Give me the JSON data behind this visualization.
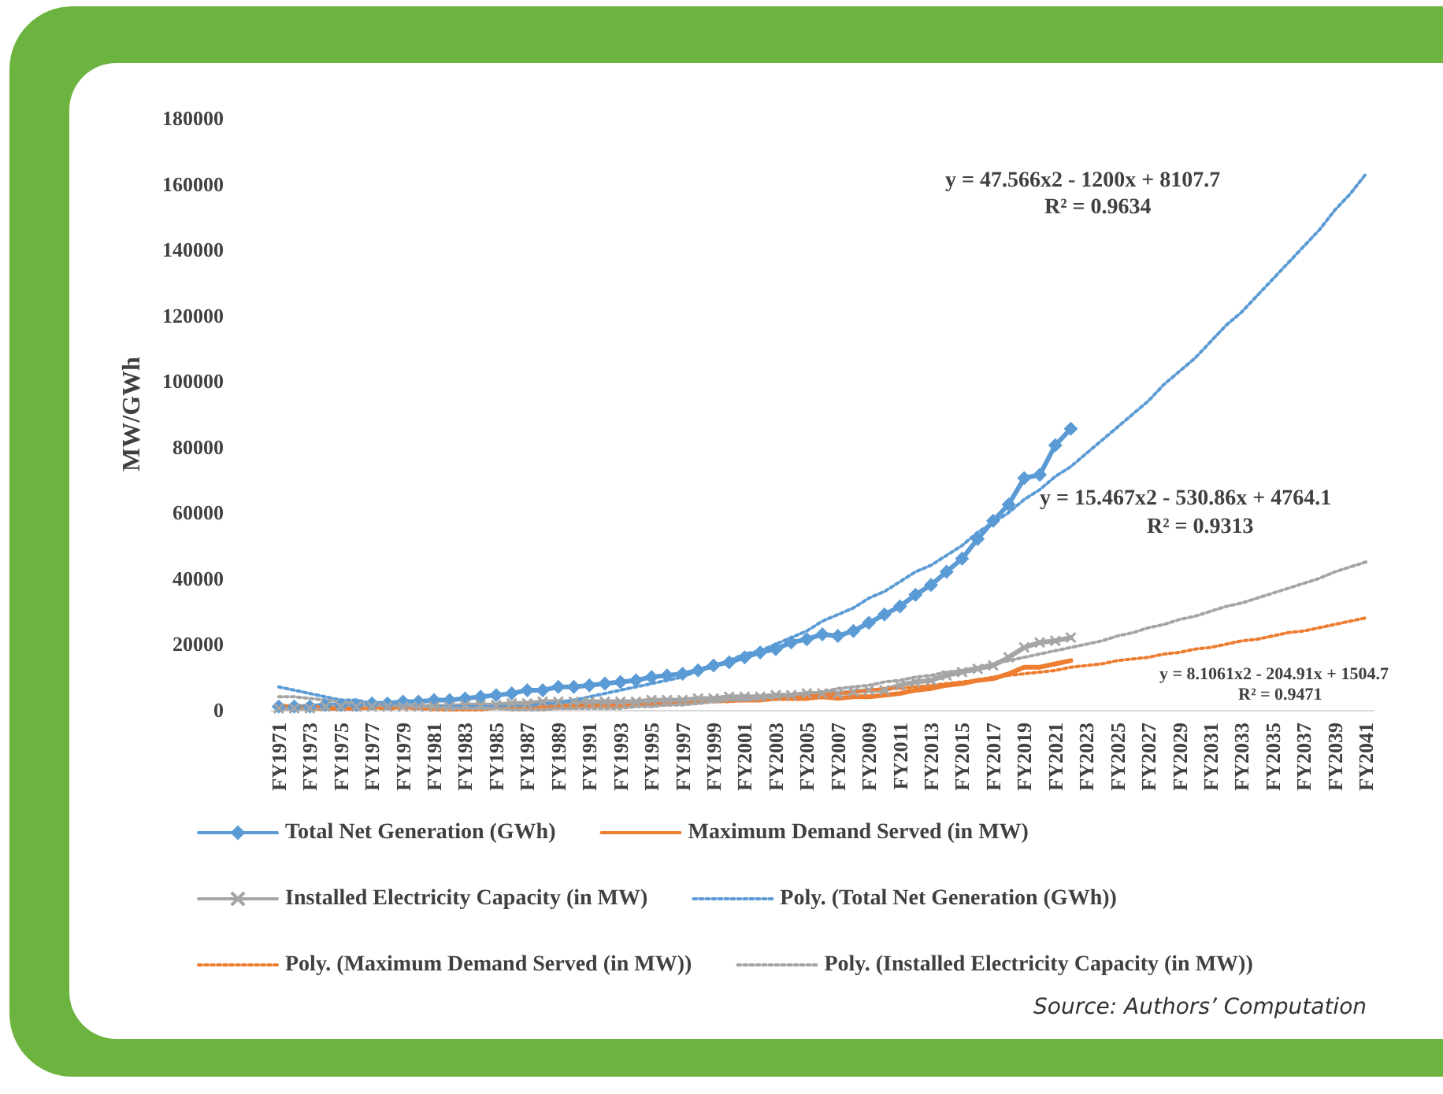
{
  "chart_data": {
    "type": "line",
    "ylabel": "MW/GWh",
    "categories": [
      "FY1971",
      null,
      "FY1973",
      null,
      "FY1975",
      null,
      "FY1977",
      null,
      "FY1979",
      null,
      "FY1981",
      null,
      "FY1983",
      null,
      "FY1985",
      null,
      "FY1987",
      null,
      "FY1989",
      null,
      "FY1991",
      null,
      "FY1993",
      null,
      "FY1995",
      null,
      "FY1997",
      null,
      "FY1999",
      null,
      "FY2001",
      null,
      "FY2003",
      null,
      "FY2005",
      null,
      "FY2007",
      null,
      "FY2009",
      null,
      "FY2011",
      null,
      "FY2013",
      null,
      "FY2015",
      null,
      "FY2017",
      null,
      "FY2019",
      null,
      "FY2021",
      null,
      "FY2023",
      null,
      "FY2025",
      null,
      "FY2027",
      null,
      "FY2029",
      null,
      "FY2031",
      null,
      "FY2033",
      null,
      "FY2035",
      null,
      "FY2037",
      null,
      "FY2039",
      null,
      "FY2041"
    ],
    "ylim": [
      0,
      180000
    ],
    "yticks": [
      0,
      20000,
      40000,
      60000,
      80000,
      100000,
      120000,
      140000,
      160000,
      180000
    ],
    "grid": false,
    "legend": "bottom",
    "series": [
      {
        "name": "Total Net Generation (GWh)",
        "color": "#5b9bd5",
        "marker": "diamond",
        "line_style": "solid",
        "values": [
          1000,
          1000,
          1000,
          1500,
          1500,
          1500,
          2000,
          2000,
          2500,
          2500,
          3000,
          3000,
          3500,
          4000,
          4500,
          5000,
          6000,
          6000,
          7000,
          7000,
          7500,
          8000,
          8500,
          9000,
          10000,
          10500,
          11000,
          12000,
          13500,
          14500,
          16000,
          17500,
          18500,
          20500,
          21500,
          23000,
          22500,
          24000,
          26500,
          29000,
          31500,
          35000,
          38000,
          42000,
          46000,
          52000,
          57500,
          62500,
          70500,
          71500,
          80500,
          85500,
          null,
          null,
          null,
          null,
          null,
          null,
          null,
          null,
          null,
          null,
          null,
          null,
          null,
          null,
          null,
          null,
          null,
          null,
          null
        ]
      },
      {
        "name": "Maximum Demand Served (in MW)",
        "color": "#ed7d31",
        "marker": "none",
        "line_style": "solid",
        "values": [
          500,
          500,
          500,
          500,
          500,
          500,
          1000,
          1000,
          1000,
          1000,
          1000,
          1000,
          1000,
          1000,
          1500,
          1500,
          1500,
          1500,
          1500,
          1500,
          2000,
          2000,
          2000,
          2000,
          2000,
          2500,
          2500,
          2500,
          3000,
          3000,
          3000,
          3000,
          3500,
          3500,
          3500,
          4000,
          3500,
          4000,
          4000,
          4500,
          5000,
          6000,
          6500,
          7500,
          8000,
          9000,
          9500,
          11000,
          13000,
          13000,
          14000,
          15000,
          null,
          null,
          null,
          null,
          null,
          null,
          null,
          null,
          null,
          null,
          null,
          null,
          null,
          null,
          null,
          null,
          null,
          null,
          null
        ]
      },
      {
        "name": "Installed Electricity Capacity (in MW)",
        "color": "#a5a5a5",
        "marker": "cross",
        "line_style": "solid",
        "values": [
          500,
          500,
          500,
          1000,
          1000,
          1000,
          1000,
          1000,
          1000,
          1000,
          1000,
          1000,
          1500,
          1500,
          1500,
          2000,
          2000,
          2500,
          2500,
          2500,
          2500,
          2500,
          2500,
          2500,
          3000,
          3000,
          3000,
          3500,
          3500,
          4000,
          4000,
          4000,
          4500,
          4500,
          5000,
          5000,
          5000,
          5500,
          6000,
          6000,
          7500,
          8500,
          9000,
          10500,
          11500,
          12500,
          13500,
          16000,
          19000,
          20500,
          21000,
          22000,
          null,
          null,
          null,
          null,
          null,
          null,
          null,
          null,
          null,
          null,
          null,
          null,
          null,
          null,
          null,
          null,
          null,
          null,
          null
        ]
      },
      {
        "name": "Poly. (Total Net Generation (GWh))",
        "color": "#5b9bd5",
        "marker": "none",
        "line_style": "dotted",
        "values": [
          7000,
          6000,
          5000,
          4000,
          3000,
          3000,
          2000,
          2000,
          1000,
          1000,
          1000,
          1000,
          1000,
          1000,
          1000,
          1000,
          1000,
          2000,
          2000,
          3000,
          4000,
          5000,
          6000,
          7000,
          8000,
          9000,
          10000,
          12000,
          13000,
          15000,
          17000,
          18000,
          20000,
          22000,
          24000,
          27000,
          29000,
          31000,
          34000,
          36000,
          39000,
          42000,
          44000,
          47000,
          50000,
          54000,
          57000,
          60000,
          64000,
          67000,
          71000,
          74000,
          78000,
          82000,
          86000,
          90000,
          94000,
          99000,
          103000,
          107000,
          112000,
          117000,
          121000,
          126000,
          131000,
          136000,
          141000,
          146000,
          152000,
          157000,
          163000
        ]
      },
      {
        "name": "Poly. (Maximum Demand Served (in MW))",
        "color": "#ed7d31",
        "marker": "none",
        "line_style": "dotted",
        "values": [
          1500,
          1000,
          1000,
          1000,
          500,
          500,
          500,
          500,
          500,
          500,
          0,
          0,
          0,
          0,
          500,
          500,
          500,
          500,
          500,
          500,
          1000,
          1000,
          1000,
          1500,
          1500,
          1500,
          2000,
          2000,
          2500,
          2500,
          3000,
          3000,
          3500,
          4000,
          4500,
          4500,
          5000,
          5500,
          6000,
          6500,
          6500,
          7000,
          7500,
          8000,
          8500,
          9000,
          10000,
          10500,
          11000,
          11500,
          12000,
          13000,
          13500,
          14000,
          15000,
          15500,
          16000,
          17000,
          17500,
          18500,
          19000,
          20000,
          21000,
          21500,
          22500,
          23500,
          24000,
          25000,
          26000,
          27000,
          28000
        ]
      },
      {
        "name": "Poly. (Installed Electricity Capacity (in MW))",
        "color": "#a5a5a5",
        "marker": "none",
        "line_style": "dotted",
        "values": [
          4000,
          4000,
          3500,
          3000,
          2500,
          2000,
          2000,
          1500,
          1000,
          1000,
          1000,
          500,
          500,
          500,
          500,
          0,
          0,
          0,
          500,
          500,
          500,
          500,
          500,
          1000,
          1000,
          1500,
          1500,
          2000,
          2500,
          3000,
          3000,
          3500,
          4000,
          4500,
          5000,
          5500,
          6500,
          7000,
          7500,
          8500,
          9000,
          10000,
          10500,
          11500,
          12000,
          13000,
          14000,
          15000,
          16000,
          17000,
          18000,
          19000,
          20000,
          21000,
          22500,
          23500,
          25000,
          26000,
          27500,
          28500,
          30000,
          31500,
          32500,
          34000,
          35500,
          37000,
          38500,
          40000,
          42000,
          43500,
          45000
        ]
      }
    ],
    "annotations": [
      "y = 47.566x2 - 1200x + 8107.7",
      "R² = 0.9634",
      "y = 15.467x2 - 530.86x + 4764.1",
      "R² = 0.9313",
      "y = 8.1061x2 - 204.91x + 1504.7",
      "R² = 0.9471",
      "Source: Authors’ Computation"
    ]
  }
}
